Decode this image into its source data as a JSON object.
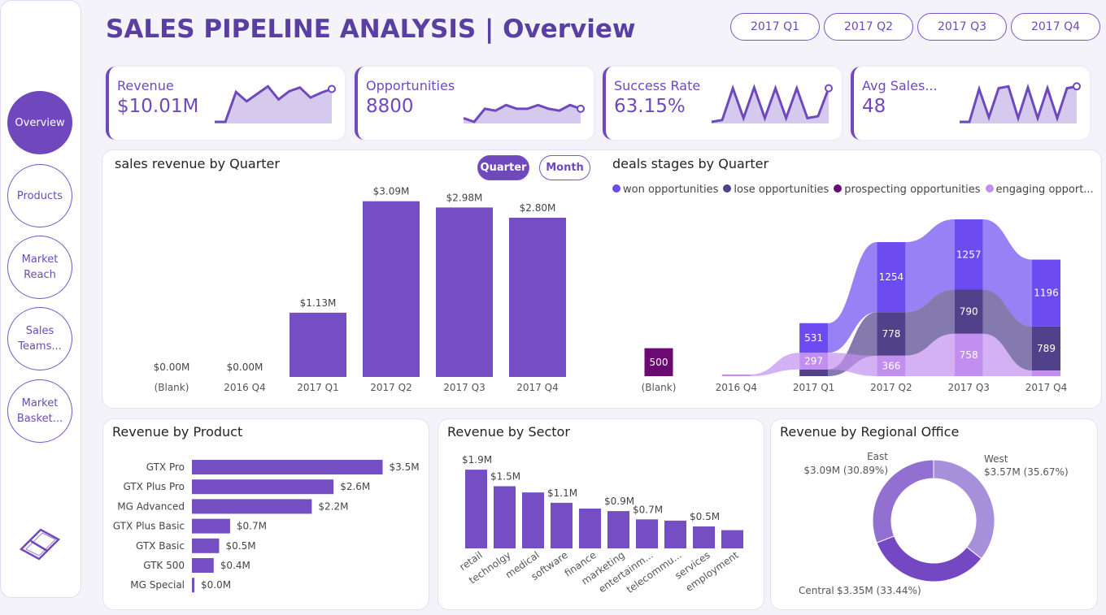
{
  "sidebar": {
    "items": [
      {
        "label": "Overview",
        "active": true
      },
      {
        "label": "Products"
      },
      {
        "label": "Market Reach"
      },
      {
        "label": "Sales Teams..."
      },
      {
        "label": "Market Basket..."
      }
    ],
    "logo_icon": "powerbi-diamond-icon"
  },
  "header": {
    "title": "SALES PIPELINE ANALYSIS | Overview",
    "quarters": [
      "2017 Q1",
      "2017 Q2",
      "2017 Q3",
      "2017 Q4"
    ]
  },
  "kpis": [
    {
      "label": "Revenue",
      "value": "$10.01M",
      "trend": [
        0,
        0,
        80,
        55,
        75,
        95,
        60,
        82,
        92,
        65,
        78,
        88
      ]
    },
    {
      "label": "Opportunities",
      "value": "8800",
      "trend": [
        10,
        0,
        35,
        30,
        45,
        35,
        35,
        45,
        35,
        30,
        45,
        35
      ]
    },
    {
      "label": "Success Rate",
      "value": "63.15%",
      "trend": [
        0,
        5,
        90,
        10,
        92,
        10,
        90,
        10,
        90,
        10,
        15,
        90
      ]
    },
    {
      "label": "Avg Sales...",
      "value": "48",
      "trend": [
        0,
        0,
        88,
        12,
        90,
        95,
        10,
        92,
        10,
        90,
        10,
        90,
        95
      ]
    }
  ],
  "colors": {
    "accent": "#7048bd",
    "won": "#6c4cf0",
    "lose": "#51418a",
    "prospecting": "#6b0a73",
    "engaging": "#c28ff0"
  },
  "revenue_chart": {
    "title": "sales revenue by Quarter",
    "toggles": [
      "Quarter",
      "Month"
    ],
    "active_toggle": "Quarter",
    "chart_data": {
      "type": "bar",
      "categories": [
        "(Blank)",
        "2016 Q4",
        "2017 Q1",
        "2017 Q2",
        "2017 Q3",
        "2017 Q4"
      ],
      "values": [
        0,
        0,
        1.13,
        3.09,
        2.98,
        2.8
      ],
      "labels": [
        "$0.00M",
        "$0.00M",
        "$1.13M",
        "$3.09M",
        "$2.98M",
        "$2.80M"
      ]
    }
  },
  "deals_chart": {
    "title": "deals stages by Quarter",
    "chart_data": {
      "type": "ribbon",
      "categories": [
        "(Blank)",
        "2016 Q4",
        "2017 Q1",
        "2017 Q2",
        "2017 Q3",
        "2017 Q4"
      ],
      "series": [
        {
          "name": "won opportunities",
          "values": [
            0,
            0,
            531,
            1254,
            1257,
            1196
          ]
        },
        {
          "name": "lose opportunities",
          "values": [
            0,
            0,
            120,
            778,
            790,
            789
          ]
        },
        {
          "name": "prospecting opportunities",
          "values": [
            500,
            0,
            0,
            0,
            0,
            0
          ]
        },
        {
          "name": "engaging opport...",
          "values": [
            0,
            30,
            297,
            366,
            758,
            100
          ]
        }
      ],
      "labels": {
        "won": [
          "",
          "",
          "531",
          "1254",
          "1257",
          "1196"
        ],
        "lose": [
          "",
          "",
          "",
          "778",
          "790",
          "789"
        ],
        "prospecting": [
          "500",
          "",
          "",
          "",
          "",
          ""
        ],
        "engaging": [
          "",
          "",
          "297",
          "366",
          "758",
          ""
        ]
      }
    }
  },
  "product_chart": {
    "title": "Revenue by Product",
    "chart_data": {
      "type": "bar",
      "orientation": "horizontal",
      "categories": [
        "GTX Pro",
        "GTX Plus Pro",
        "MG Advanced",
        "GTX Plus Basic",
        "GTX Basic",
        "GTK 500",
        "MG Special"
      ],
      "values": [
        3.5,
        2.6,
        2.2,
        0.7,
        0.5,
        0.4,
        0.04
      ],
      "labels": [
        "$3.5M",
        "$2.6M",
        "$2.2M",
        "$0.7M",
        "$0.5M",
        "$0.4M",
        "$0.0M"
      ]
    }
  },
  "sector_chart": {
    "title": "Revenue by Sector",
    "chart_data": {
      "type": "bar",
      "categories": [
        "retail",
        "technolgy",
        "medical",
        "software",
        "finance",
        "marketing",
        "entertainm...",
        "telecommu...",
        "services",
        "employment"
      ],
      "values": [
        1.9,
        1.5,
        1.35,
        1.1,
        0.96,
        0.9,
        0.7,
        0.67,
        0.53,
        0.44
      ],
      "labels": [
        "$1.9M",
        "$1.5M",
        "",
        "$1.1M",
        "",
        "$0.9M",
        "$0.7M",
        "",
        "$0.5M",
        ""
      ]
    }
  },
  "region_chart": {
    "title": "Revenue by Regional Office",
    "chart_data": {
      "type": "pie",
      "donut": true,
      "categories": [
        "West",
        "Central",
        "East"
      ],
      "values": [
        35.67,
        33.44,
        30.89
      ],
      "labels": [
        "$3.57M (35.67%)",
        "$3.35M (33.44%)",
        "$3.09M (30.89%)"
      ],
      "colors": [
        "#a78fdb",
        "#7448c2",
        "#9270d2"
      ]
    }
  }
}
